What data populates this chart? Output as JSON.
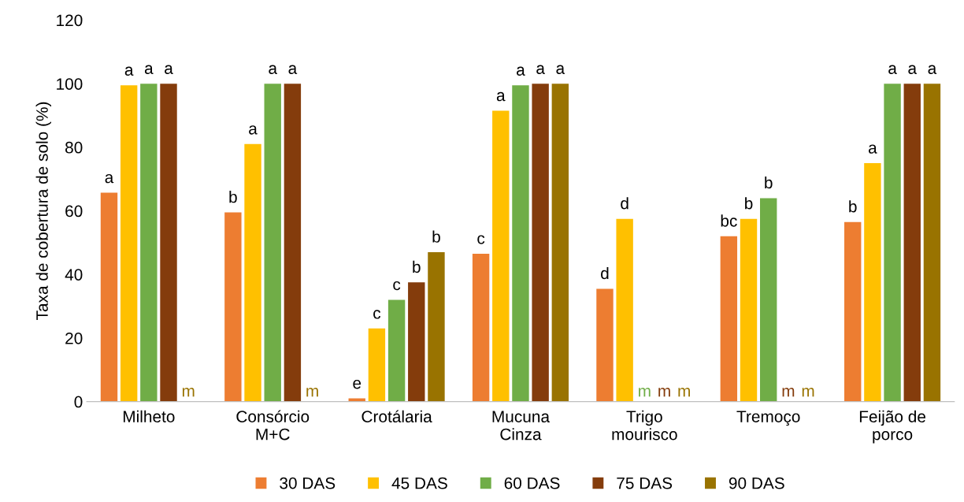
{
  "chart_data": {
    "type": "bar",
    "ylabel": "Taxa de cobertura de solo (%)",
    "categories": [
      "Milheto",
      "Consórcio\nM+C",
      "Crotálaria",
      "Mucuna\nCinza",
      "Trigo\nmourisco",
      "Tremoço",
      "Feijão de\nporco"
    ],
    "series": [
      {
        "name": "30 DAS",
        "color": "#ed7d31",
        "values": [
          65.7,
          59.5,
          1,
          46.5,
          35.5,
          52,
          56.5
        ],
        "value_labels": [
          "a",
          "b",
          "e",
          "c",
          "d",
          "bc",
          "b"
        ]
      },
      {
        "name": "45 DAS",
        "color": "#ffc000",
        "values": [
          99.5,
          81,
          23,
          91.5,
          57.5,
          57.5,
          75
        ],
        "value_labels": [
          "a",
          "a",
          "c",
          "a",
          "d",
          "b",
          "a"
        ]
      },
      {
        "name": "60 DAS",
        "color": "#70ad47",
        "values": [
          100,
          100,
          32,
          99.5,
          null,
          64,
          100
        ],
        "value_labels": [
          "a",
          "a",
          "c",
          "a",
          "m",
          "b",
          "a"
        ]
      },
      {
        "name": "75 DAS",
        "color": "#843c0c",
        "values": [
          100,
          100,
          37.5,
          100,
          null,
          null,
          100
        ],
        "value_labels": [
          "a",
          "a",
          "b",
          "a",
          "m",
          "m",
          "a"
        ]
      },
      {
        "name": "90 DAS",
        "color": "#997300",
        "values": [
          null,
          null,
          47,
          100,
          null,
          null,
          100
        ],
        "value_labels": [
          "m",
          "m",
          "b",
          "a",
          "m",
          "m",
          "a"
        ]
      }
    ],
    "ylim": [
      0,
      120
    ],
    "yticks": [
      0,
      20,
      40,
      60,
      80,
      100,
      120
    ],
    "grid": false,
    "legend": "bottom"
  }
}
